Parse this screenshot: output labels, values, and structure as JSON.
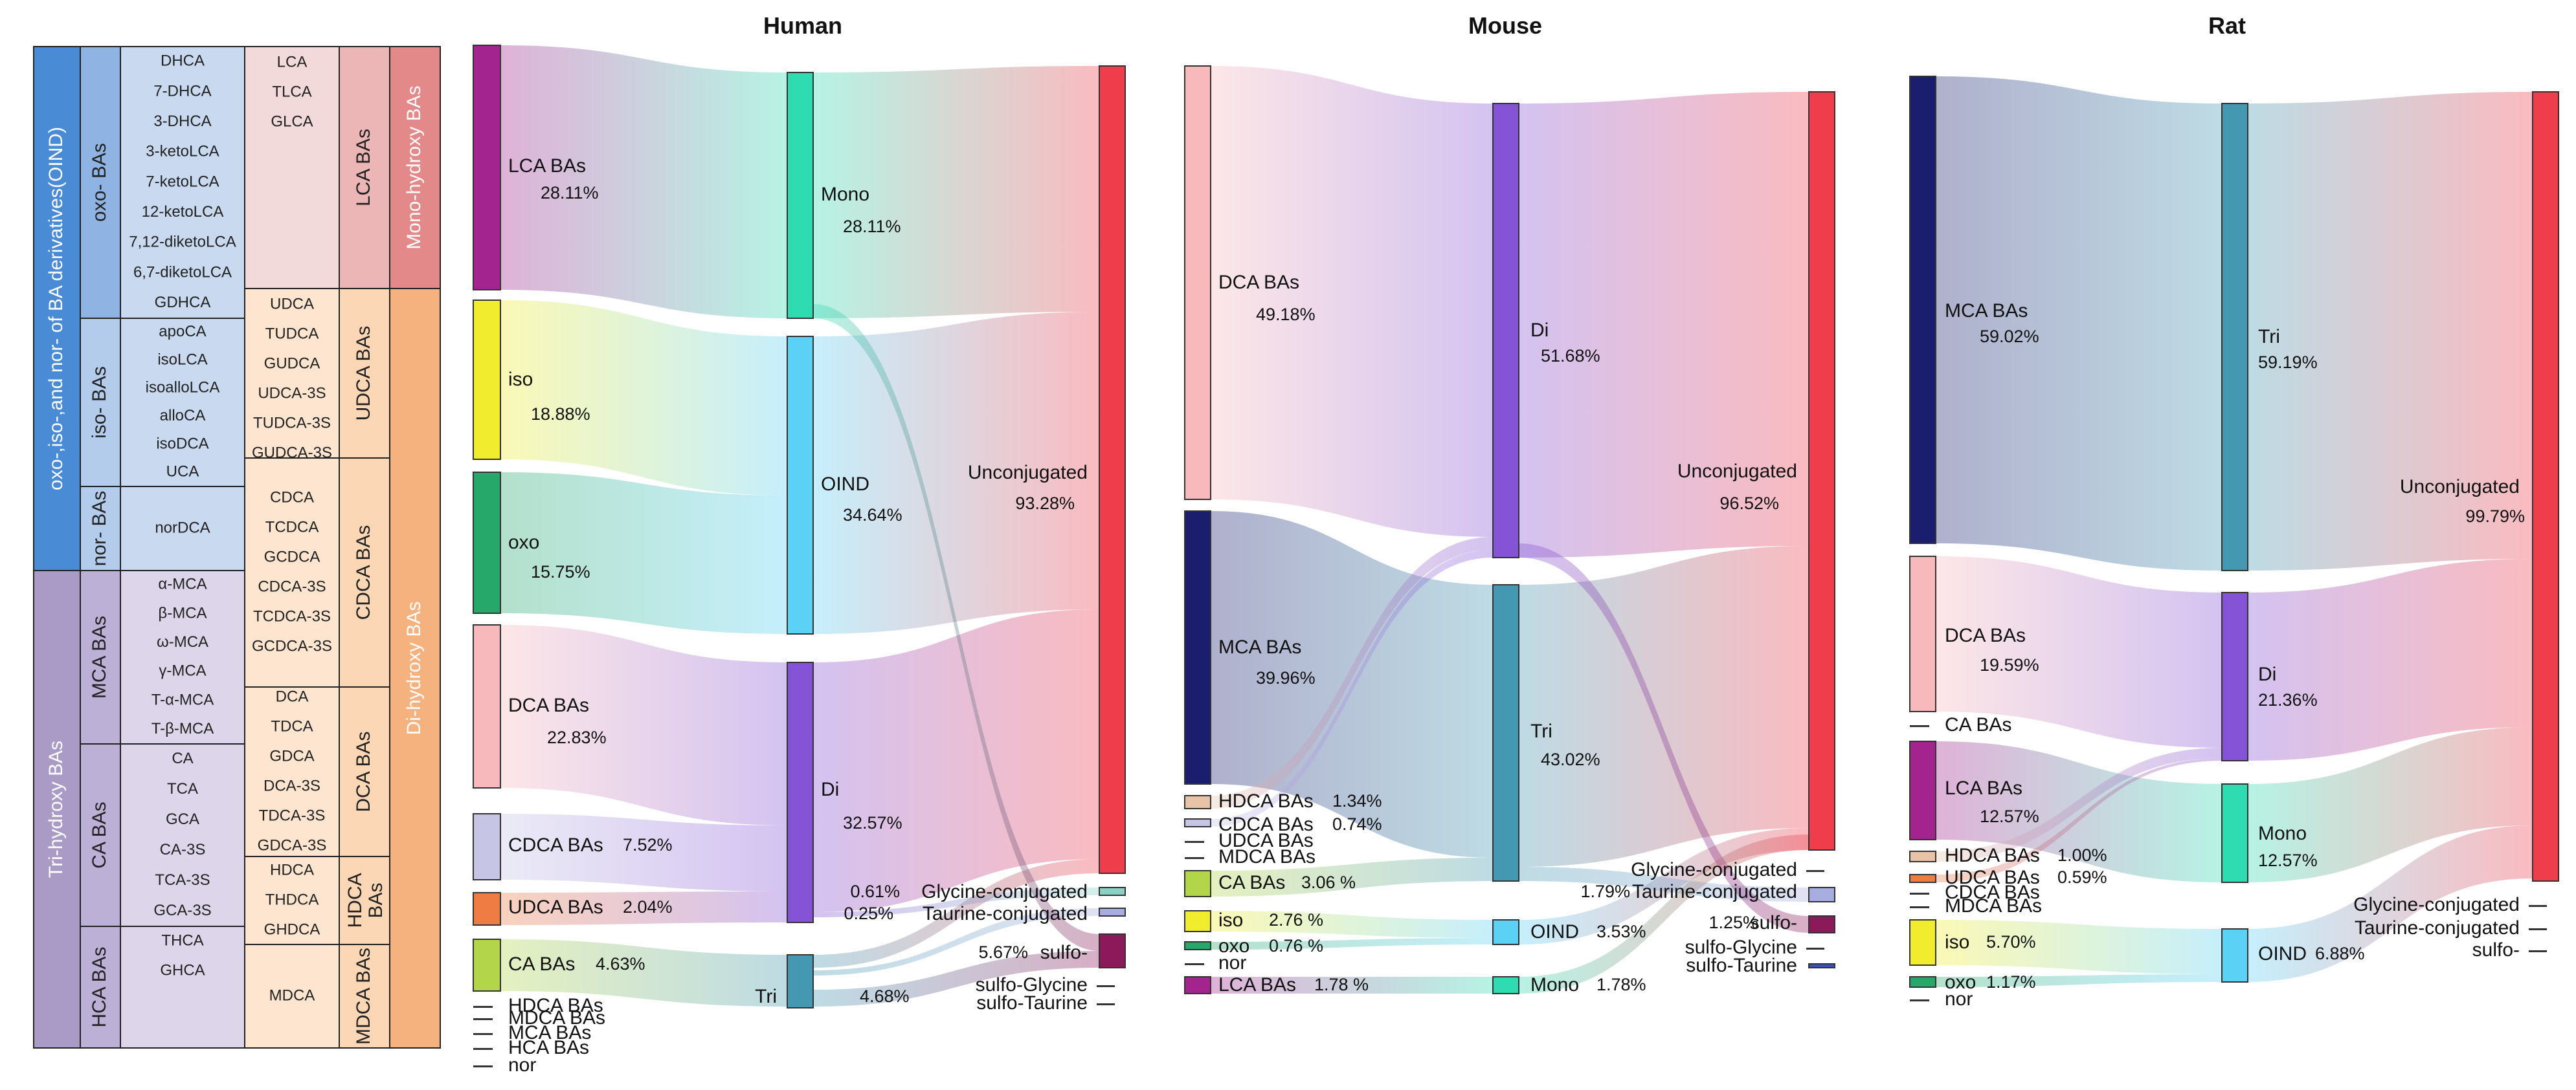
{
  "titles": {
    "human": "Human",
    "mouse": "Mouse",
    "rat": "Rat"
  },
  "colors": {
    "oind": "#4a8bd6",
    "oxo": "#8fb4e3",
    "iso": "#b4ccec",
    "nor": "#b4ccec",
    "tri": "#a99bc6",
    "mca": "#bdb0d6",
    "ca": "#bdb0d6",
    "hca": "#bdb0d6",
    "mono": "#e3898a",
    "lca": "#ecb6b6",
    "di": "#f6b27e",
    "sub": "#fbd7b6",
    "cellBlue": "#c9d9ef",
    "cellPurple": "#ddd6ea",
    "cellPink": "#f3dada",
    "cellOrange": "#fde5cf"
  },
  "legend": {
    "left": {
      "oind": "oxo-,iso-,and nor- of BA derivatives(OIND)",
      "tri": "Tri-hydroxy BAs"
    },
    "groups": {
      "oxo": "oxo- BAs",
      "iso": "iso- BAs",
      "nor": "nor- BAs",
      "mca": "MCA BAs",
      "ca": "CA BAs",
      "hca": "HCA BAs"
    },
    "col1": {
      "oxo": [
        "DHCA",
        "7-DHCA",
        "3-DHCA",
        "3-ketoLCA",
        "7-ketoLCA",
        "12-ketoLCA",
        "7,12-diketoLCA",
        "6,7-diketoLCA",
        "GDHCA"
      ],
      "iso": [
        "apoCA",
        "isoLCA",
        "isoalloLCA",
        "alloCA",
        "isoDCA",
        "UCA"
      ],
      "nor": [
        "norDCA"
      ],
      "mca": [
        "α-MCA",
        "β-MCA",
        "ω-MCA",
        "γ-MCA",
        "T-α-MCA",
        "T-β-MCA"
      ],
      "ca": [
        "CA",
        "TCA",
        "GCA",
        "CA-3S",
        "TCA-3S",
        "GCA-3S"
      ],
      "hca": [
        "THCA",
        "GHCA"
      ]
    },
    "col2": {
      "lca": [
        "LCA",
        "TLCA",
        "GLCA"
      ],
      "udca": [
        "UDCA",
        "TUDCA",
        "GUDCA",
        "UDCA-3S",
        "TUDCA-3S",
        "GUDCA-3S"
      ],
      "cdca": [
        "CDCA",
        "TCDCA",
        "GCDCA",
        "CDCA-3S",
        "TCDCA-3S",
        "GCDCA-3S"
      ],
      "dca": [
        "DCA",
        "TDCA",
        "GDCA",
        "DCA-3S",
        "TDCA-3S",
        "GDCA-3S"
      ],
      "hdca": [
        "HDCA",
        "THDCA",
        "GHDCA"
      ],
      "mdca": [
        "MDCA"
      ]
    },
    "subgroups": {
      "lca": "LCA BAs",
      "udca": "UDCA BAs",
      "cdca": "CDCA BAs",
      "dca": "DCA BAs",
      "hdca1": "HDCA",
      "hdca2": "BAs",
      "mdca": "MDCA BAs"
    },
    "right": {
      "mono": "Mono-hydroxy BAs",
      "di": "Di-hydroxy BAs"
    }
  },
  "human": {
    "nodes": [
      {
        "id": "lca",
        "label": "LCA BAs",
        "value": "28.11%",
        "color": "#a3238f"
      },
      {
        "id": "iso",
        "label": "iso",
        "value": "18.88%",
        "color": "#f2ec2e"
      },
      {
        "id": "oxo",
        "label": "oxo",
        "value": "15.75%",
        "color": "#27a86b"
      },
      {
        "id": "dca",
        "label": "DCA BAs",
        "value": "22.83%",
        "color": "#f7b9bb"
      },
      {
        "id": "cdca",
        "label": "CDCA BAs",
        "value": "7.52%",
        "color": "#c6c5e6"
      },
      {
        "id": "udca",
        "label": "UDCA BAs",
        "value": "2.04%",
        "color": "#ef7d43"
      },
      {
        "id": "ca",
        "label": "CA BAs",
        "value": "4.63%",
        "color": "#b3d549"
      },
      {
        "id": "hdca",
        "label": "HDCA BAs",
        "value": ""
      },
      {
        "id": "mdca",
        "label": "MDCA BAs",
        "value": ""
      },
      {
        "id": "mca",
        "label": "MCA BAs",
        "value": ""
      },
      {
        "id": "hca",
        "label": "HCA BAs",
        "value": ""
      },
      {
        "id": "nor",
        "label": "nor",
        "value": ""
      },
      {
        "id": "mono",
        "label": "Mono",
        "value": "28.11%",
        "color": "#2fdcb2"
      },
      {
        "id": "oind",
        "label": "OIND",
        "value": "34.64%",
        "color": "#5bd1f5"
      },
      {
        "id": "di",
        "label": "Di",
        "value": "32.57%",
        "color": "#8453d6"
      },
      {
        "id": "tri",
        "label": "Tri",
        "value": "4.68%",
        "color": "#4598b2"
      },
      {
        "id": "unc",
        "label": "Unconjugated",
        "value": "93.28%",
        "color": "#ef3d4b"
      },
      {
        "id": "gly",
        "label": "Glycine-conjugated",
        "value": "0.61%",
        "color": "#8ad0c4"
      },
      {
        "id": "tau",
        "label": "Taurine-conjugated",
        "value": "0.25%",
        "color": "#a7addf"
      },
      {
        "id": "sulfo",
        "label": "sulfo-",
        "value": "5.67%",
        "color": "#8c1a5a"
      },
      {
        "id": "sgly",
        "label": "sulfo-Glycine",
        "value": ""
      },
      {
        "id": "stau",
        "label": "sulfo-Taurine",
        "value": ""
      }
    ]
  },
  "mouse": {
    "nodes": [
      {
        "id": "dca",
        "label": "DCA BAs",
        "value": "49.18%",
        "color": "#f7b9bb"
      },
      {
        "id": "mca",
        "label": "MCA BAs",
        "value": "39.96%",
        "color": "#1b1e6f"
      },
      {
        "id": "hdca",
        "label": "HDCA BAs",
        "value": "1.34%",
        "color": "#e9c3a7"
      },
      {
        "id": "cdca",
        "label": "CDCA BAs",
        "value": "0.74%",
        "color": "#c6c5e6"
      },
      {
        "id": "udca",
        "label": "UDCA BAs",
        "value": ""
      },
      {
        "id": "mdca",
        "label": "MDCA BAs",
        "value": ""
      },
      {
        "id": "ca",
        "label": "CA BAs",
        "value": "3.06 %",
        "color": "#b3d549"
      },
      {
        "id": "iso",
        "label": "iso",
        "value": "2.76 %",
        "color": "#f2ec2e"
      },
      {
        "id": "oxo",
        "label": "oxo",
        "value": "0.76 %",
        "color": "#27a86b"
      },
      {
        "id": "nor",
        "label": "nor",
        "value": ""
      },
      {
        "id": "lca",
        "label": "LCA BAs",
        "value": "1.78 %",
        "color": "#a3238f"
      },
      {
        "id": "di",
        "label": "Di",
        "value": "51.68%",
        "color": "#8453d6"
      },
      {
        "id": "tri",
        "label": "Tri",
        "value": "43.02%",
        "color": "#4598b2"
      },
      {
        "id": "oind",
        "label": "OIND",
        "value": "3.53%",
        "color": "#5bd1f5"
      },
      {
        "id": "mono",
        "label": "Mono",
        "value": "1.78%",
        "color": "#2fdcb2"
      },
      {
        "id": "unc",
        "label": "Unconjugated",
        "value": "96.52%",
        "color": "#ef3d4b"
      },
      {
        "id": "gly",
        "label": "Glycine-conjugated",
        "value": ""
      },
      {
        "id": "tau",
        "label": "Taurine-conjugated",
        "value": "1.79%",
        "color": "#a7addf"
      },
      {
        "id": "sulfo",
        "label": "sulfo-",
        "value": "1.25%",
        "color": "#8c1a5a"
      },
      {
        "id": "sgly",
        "label": "sulfo-Glycine",
        "value": ""
      },
      {
        "id": "stau",
        "label": "sulfo-Taurine",
        "value": "",
        "color": "#3b4fb8"
      }
    ]
  },
  "rat": {
    "nodes": [
      {
        "id": "mca",
        "label": "MCA BAs",
        "value": "59.02%",
        "color": "#1b1e6f"
      },
      {
        "id": "dca",
        "label": "DCA BAs",
        "value": "19.59%",
        "color": "#f7b9bb"
      },
      {
        "id": "ca",
        "label": "CA BAs",
        "value": ""
      },
      {
        "id": "lca",
        "label": "LCA BAs",
        "value": "12.57%",
        "color": "#a3238f"
      },
      {
        "id": "hdca",
        "label": "HDCA BAs",
        "value": "1.00%",
        "color": "#e9c3a7"
      },
      {
        "id": "udca",
        "label": "UDCA BAs",
        "value": "0.59%",
        "color": "#ef7d43"
      },
      {
        "id": "cdca",
        "label": "CDCA BAs",
        "value": ""
      },
      {
        "id": "mdca",
        "label": "MDCA BAs",
        "value": ""
      },
      {
        "id": "iso",
        "label": "iso",
        "value": "5.70%",
        "color": "#f2ec2e"
      },
      {
        "id": "oxo",
        "label": "oxo",
        "value": "1.17%",
        "color": "#27a86b"
      },
      {
        "id": "nor",
        "label": "nor",
        "value": ""
      },
      {
        "id": "tri",
        "label": "Tri",
        "value": "59.19%",
        "color": "#4598b2"
      },
      {
        "id": "di",
        "label": "Di",
        "value": "21.36%",
        "color": "#8453d6"
      },
      {
        "id": "mono",
        "label": "Mono",
        "value": "12.57%",
        "color": "#2fdcb2"
      },
      {
        "id": "oind",
        "label": "OIND",
        "value": "6.88%",
        "color": "#5bd1f5"
      },
      {
        "id": "unc",
        "label": "Unconjugated",
        "value": "99.79%",
        "color": "#ef3d4b"
      },
      {
        "id": "gly",
        "label": "Glycine-conjugated",
        "value": ""
      },
      {
        "id": "tau",
        "label": "Taurine-conjugated",
        "value": ""
      },
      {
        "id": "sulfo",
        "label": "sulfo-",
        "value": ""
      }
    ]
  }
}
